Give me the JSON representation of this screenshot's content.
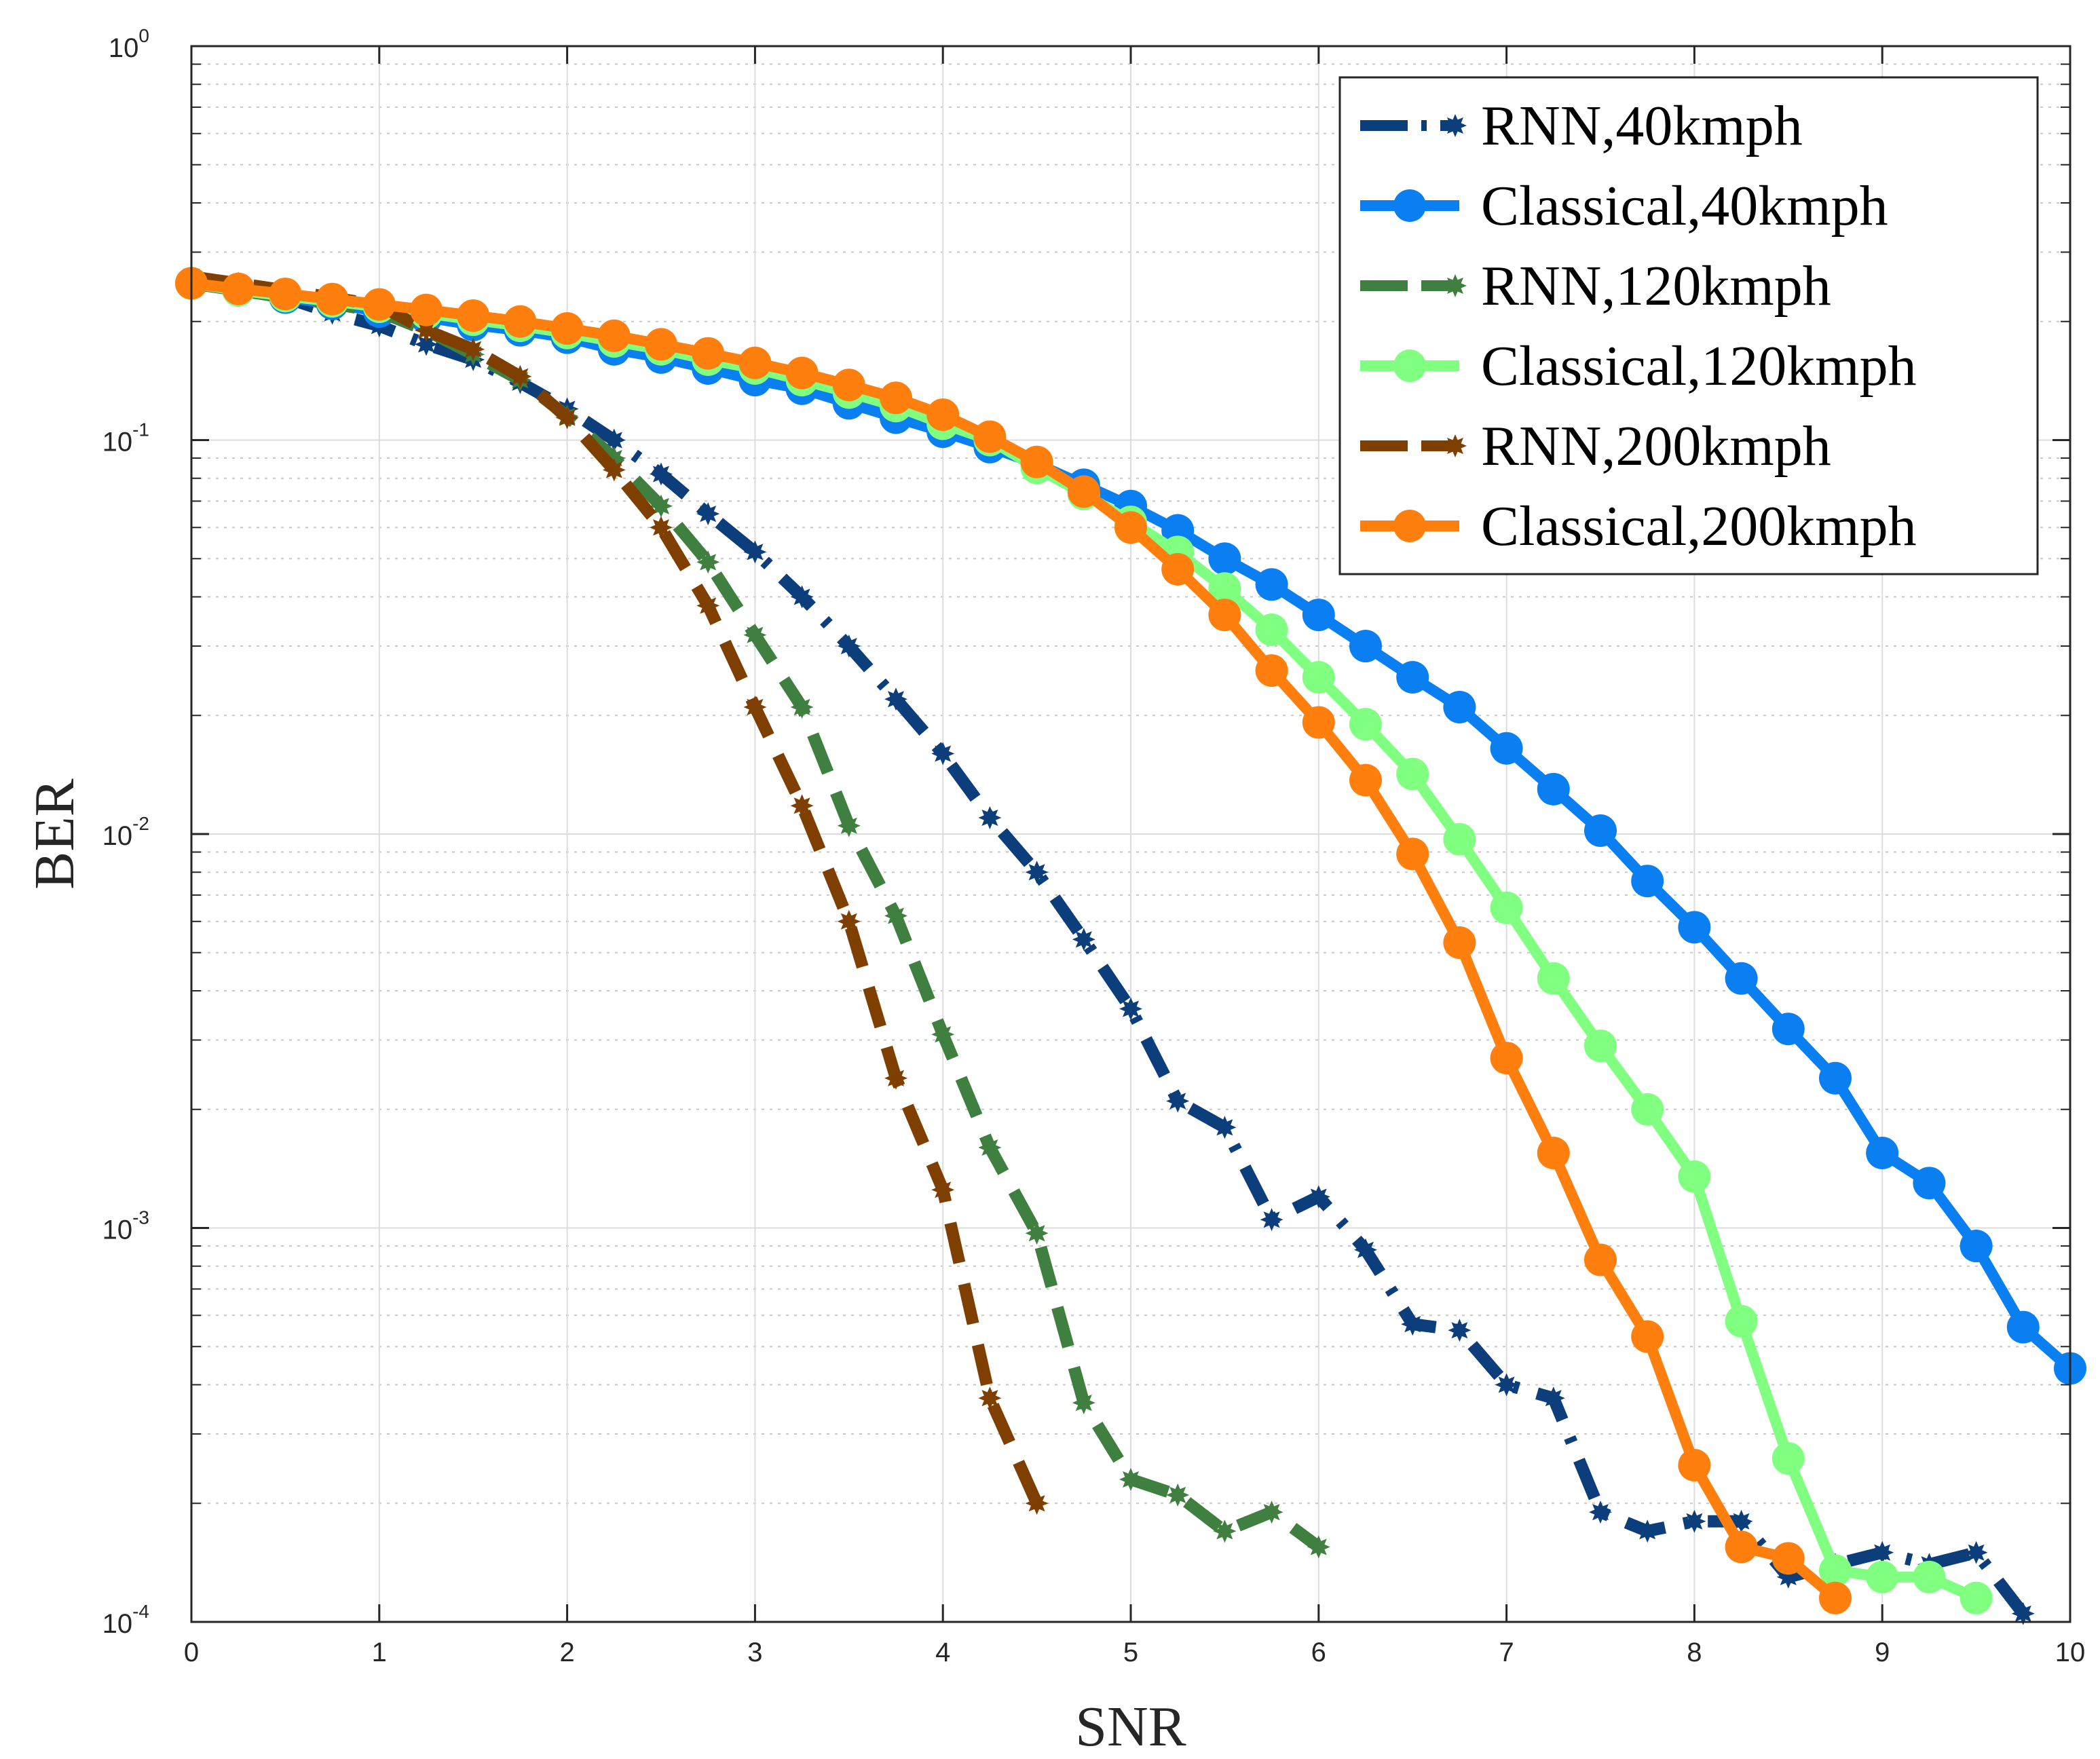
{
  "chart_data": {
    "type": "line",
    "title": "",
    "xlabel": "SNR",
    "ylabel": "BER",
    "xlim": [
      0,
      10
    ],
    "ylim": [
      0.0001,
      1
    ],
    "yscale": "log",
    "grid": true,
    "minor_grid": true,
    "legend_position": "top-right",
    "x_ticks": [
      "0",
      "1",
      "2",
      "3",
      "4",
      "5",
      "6",
      "7",
      "8",
      "9",
      "10"
    ],
    "y_ticks": [
      {
        "value": 1,
        "base": "10",
        "exp": "0"
      },
      {
        "value": 0.1,
        "base": "10",
        "exp": "-1"
      },
      {
        "value": 0.01,
        "base": "10",
        "exp": "-2"
      },
      {
        "value": 0.001,
        "base": "10",
        "exp": "-3"
      },
      {
        "value": 0.0001,
        "base": "10",
        "exp": "-4"
      }
    ],
    "series": [
      {
        "name": "RNN,40kmph",
        "color": "#0b3e7a",
        "style": "dashdot",
        "marker": "star",
        "x": [
          0,
          0.25,
          0.5,
          0.75,
          1,
          1.25,
          1.5,
          1.75,
          2,
          2.25,
          2.5,
          2.75,
          3,
          3.25,
          3.5,
          3.75,
          4,
          4.25,
          4.5,
          4.75,
          5,
          5.25,
          5.5,
          5.75,
          6,
          6.25,
          6.5,
          6.75,
          7,
          7.25,
          7.5,
          7.75,
          8,
          8.25,
          8.5,
          8.75,
          9,
          9.25,
          9.5,
          9.75
        ],
        "values": [
          0.25,
          0.24,
          0.23,
          0.21,
          0.195,
          0.175,
          0.16,
          0.14,
          0.12,
          0.1,
          0.082,
          0.065,
          0.052,
          0.04,
          0.03,
          0.022,
          0.016,
          0.011,
          0.008,
          0.0054,
          0.0036,
          0.0021,
          0.0018,
          0.00105,
          0.0012,
          0.00088,
          0.00057,
          0.00055,
          0.0004,
          0.00037,
          0.00019,
          0.00017,
          0.00018,
          0.00018,
          0.00013,
          0.00014,
          0.00015,
          0.00014,
          0.00015,
          0.000105
        ]
      },
      {
        "name": "Classical,40kmph",
        "color": "#0a7ff2",
        "style": "solid",
        "marker": "circle",
        "x": [
          0,
          0.25,
          0.5,
          0.75,
          1,
          1.25,
          1.5,
          1.75,
          2,
          2.25,
          2.5,
          2.75,
          3,
          3.25,
          3.5,
          3.75,
          4,
          4.25,
          4.5,
          4.75,
          5,
          5.25,
          5.5,
          5.75,
          6,
          6.25,
          6.5,
          6.75,
          7,
          7.25,
          7.5,
          7.75,
          8,
          8.25,
          8.5,
          8.75,
          9,
          9.25,
          9.5,
          9.75,
          10
        ],
        "values": [
          0.25,
          0.24,
          0.23,
          0.222,
          0.212,
          0.205,
          0.196,
          0.19,
          0.182,
          0.17,
          0.162,
          0.152,
          0.142,
          0.135,
          0.124,
          0.114,
          0.105,
          0.096,
          0.087,
          0.077,
          0.068,
          0.059,
          0.05,
          0.043,
          0.036,
          0.03,
          0.025,
          0.021,
          0.0165,
          0.013,
          0.0102,
          0.0076,
          0.0058,
          0.0043,
          0.0032,
          0.0024,
          0.00155,
          0.0013,
          0.0009,
          0.00056,
          0.00044
        ]
      },
      {
        "name": "RNN,120kmph",
        "color": "#3f7f3f",
        "style": "dashed",
        "marker": "star",
        "x": [
          0,
          0.25,
          0.5,
          0.75,
          1,
          1.25,
          1.5,
          1.75,
          2,
          2.25,
          2.5,
          2.75,
          3,
          3.25,
          3.5,
          3.75,
          4,
          4.25,
          4.5,
          4.75,
          5,
          5.25,
          5.5,
          5.75,
          6
        ],
        "values": [
          0.25,
          0.24,
          0.23,
          0.222,
          0.212,
          0.19,
          0.165,
          0.142,
          0.115,
          0.09,
          0.068,
          0.049,
          0.032,
          0.021,
          0.0105,
          0.0062,
          0.0031,
          0.0016,
          0.00097,
          0.00036,
          0.00023,
          0.00021,
          0.00017,
          0.00019,
          0.000155
        ]
      },
      {
        "name": "Classical,120kmph",
        "color": "#80ff80",
        "style": "solid",
        "marker": "circle",
        "x": [
          0,
          0.25,
          0.5,
          0.75,
          1,
          1.25,
          1.5,
          1.75,
          2,
          2.25,
          2.5,
          2.75,
          3,
          3.25,
          3.5,
          3.75,
          4,
          4.25,
          4.5,
          4.75,
          5,
          5.25,
          5.5,
          5.75,
          6,
          6.25,
          6.5,
          6.75,
          7,
          7.25,
          7.5,
          7.75,
          8,
          8.25,
          8.5,
          8.75,
          9,
          9.25,
          9.5
        ],
        "values": [
          0.25,
          0.24,
          0.232,
          0.225,
          0.218,
          0.21,
          0.202,
          0.195,
          0.187,
          0.178,
          0.17,
          0.16,
          0.152,
          0.142,
          0.132,
          0.122,
          0.11,
          0.1,
          0.085,
          0.073,
          0.062,
          0.052,
          0.042,
          0.033,
          0.025,
          0.019,
          0.0142,
          0.0097,
          0.0065,
          0.0043,
          0.0029,
          0.002,
          0.00135,
          0.00058,
          0.00026,
          0.000135,
          0.00013,
          0.00013,
          0.000115
        ]
      },
      {
        "name": "RNN,200kmph",
        "color": "#7f3f00",
        "style": "dashed",
        "marker": "star",
        "x": [
          0,
          0.25,
          0.5,
          0.75,
          1,
          1.25,
          1.5,
          1.75,
          2,
          2.25,
          2.5,
          2.75,
          3,
          3.25,
          3.5,
          3.75,
          4,
          4.25,
          4.5
        ],
        "values": [
          0.26,
          0.25,
          0.24,
          0.23,
          0.22,
          0.19,
          0.17,
          0.145,
          0.114,
          0.084,
          0.06,
          0.038,
          0.021,
          0.0118,
          0.006,
          0.0024,
          0.00125,
          0.00037,
          0.0002
        ]
      },
      {
        "name": "Classical,200kmph",
        "color": "#ff7f0e",
        "style": "solid",
        "marker": "circle",
        "x": [
          0,
          0.25,
          0.5,
          0.75,
          1,
          1.25,
          1.5,
          1.75,
          2,
          2.25,
          2.5,
          2.75,
          3,
          3.25,
          3.5,
          3.75,
          4,
          4.25,
          4.5,
          4.75,
          5,
          5.25,
          5.5,
          5.75,
          6,
          6.25,
          6.5,
          6.75,
          7,
          7.25,
          7.5,
          7.75,
          8,
          8.25,
          8.5,
          8.75
        ],
        "values": [
          0.25,
          0.242,
          0.235,
          0.228,
          0.221,
          0.214,
          0.207,
          0.2,
          0.192,
          0.184,
          0.175,
          0.166,
          0.157,
          0.148,
          0.138,
          0.128,
          0.116,
          0.102,
          0.088,
          0.074,
          0.06,
          0.047,
          0.036,
          0.026,
          0.0192,
          0.0137,
          0.0089,
          0.0053,
          0.0027,
          0.00155,
          0.00083,
          0.00053,
          0.00025,
          0.000155,
          0.000145,
          0.000115
        ]
      }
    ]
  }
}
